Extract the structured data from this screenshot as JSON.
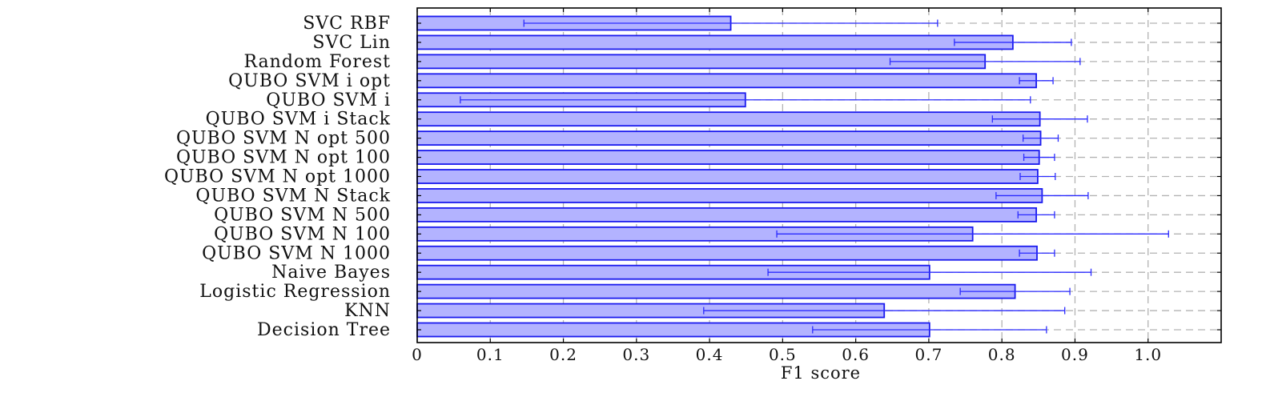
{
  "chart_data": {
    "type": "bar",
    "orientation": "horizontal",
    "xlabel": "F1 score",
    "xlim": [
      0,
      1.1
    ],
    "xticks": [
      "0",
      "0.1",
      "0.2",
      "0.3",
      "0.4",
      "0.5",
      "0.6",
      "0.7",
      "0.8",
      "0.9",
      "1.0"
    ],
    "grid": true,
    "categories": [
      "SVC RBF",
      "SVC Lin",
      "Random Forest",
      "QUBO SVM i opt",
      "QUBO SVM i",
      "QUBO SVM i Stack",
      "QUBO SVM N opt 500",
      "QUBO SVM N opt 100",
      "QUBO SVM N opt 1000",
      "QUBO SVM N Stack",
      "QUBO SVM N 500",
      "QUBO SVM N 100",
      "QUBO SVM N 1000",
      "Naive Bayes",
      "Logistic Regression",
      "KNN",
      "Decision Tree"
    ],
    "values": [
      0.429,
      0.815,
      0.777,
      0.847,
      0.449,
      0.852,
      0.853,
      0.851,
      0.849,
      0.855,
      0.847,
      0.76,
      0.848,
      0.701,
      0.818,
      0.639,
      0.701
    ],
    "error": [
      0.283,
      0.08,
      0.13,
      0.023,
      0.39,
      0.065,
      0.024,
      0.021,
      0.024,
      0.063,
      0.025,
      0.268,
      0.024,
      0.221,
      0.075,
      0.247,
      0.16
    ]
  }
}
